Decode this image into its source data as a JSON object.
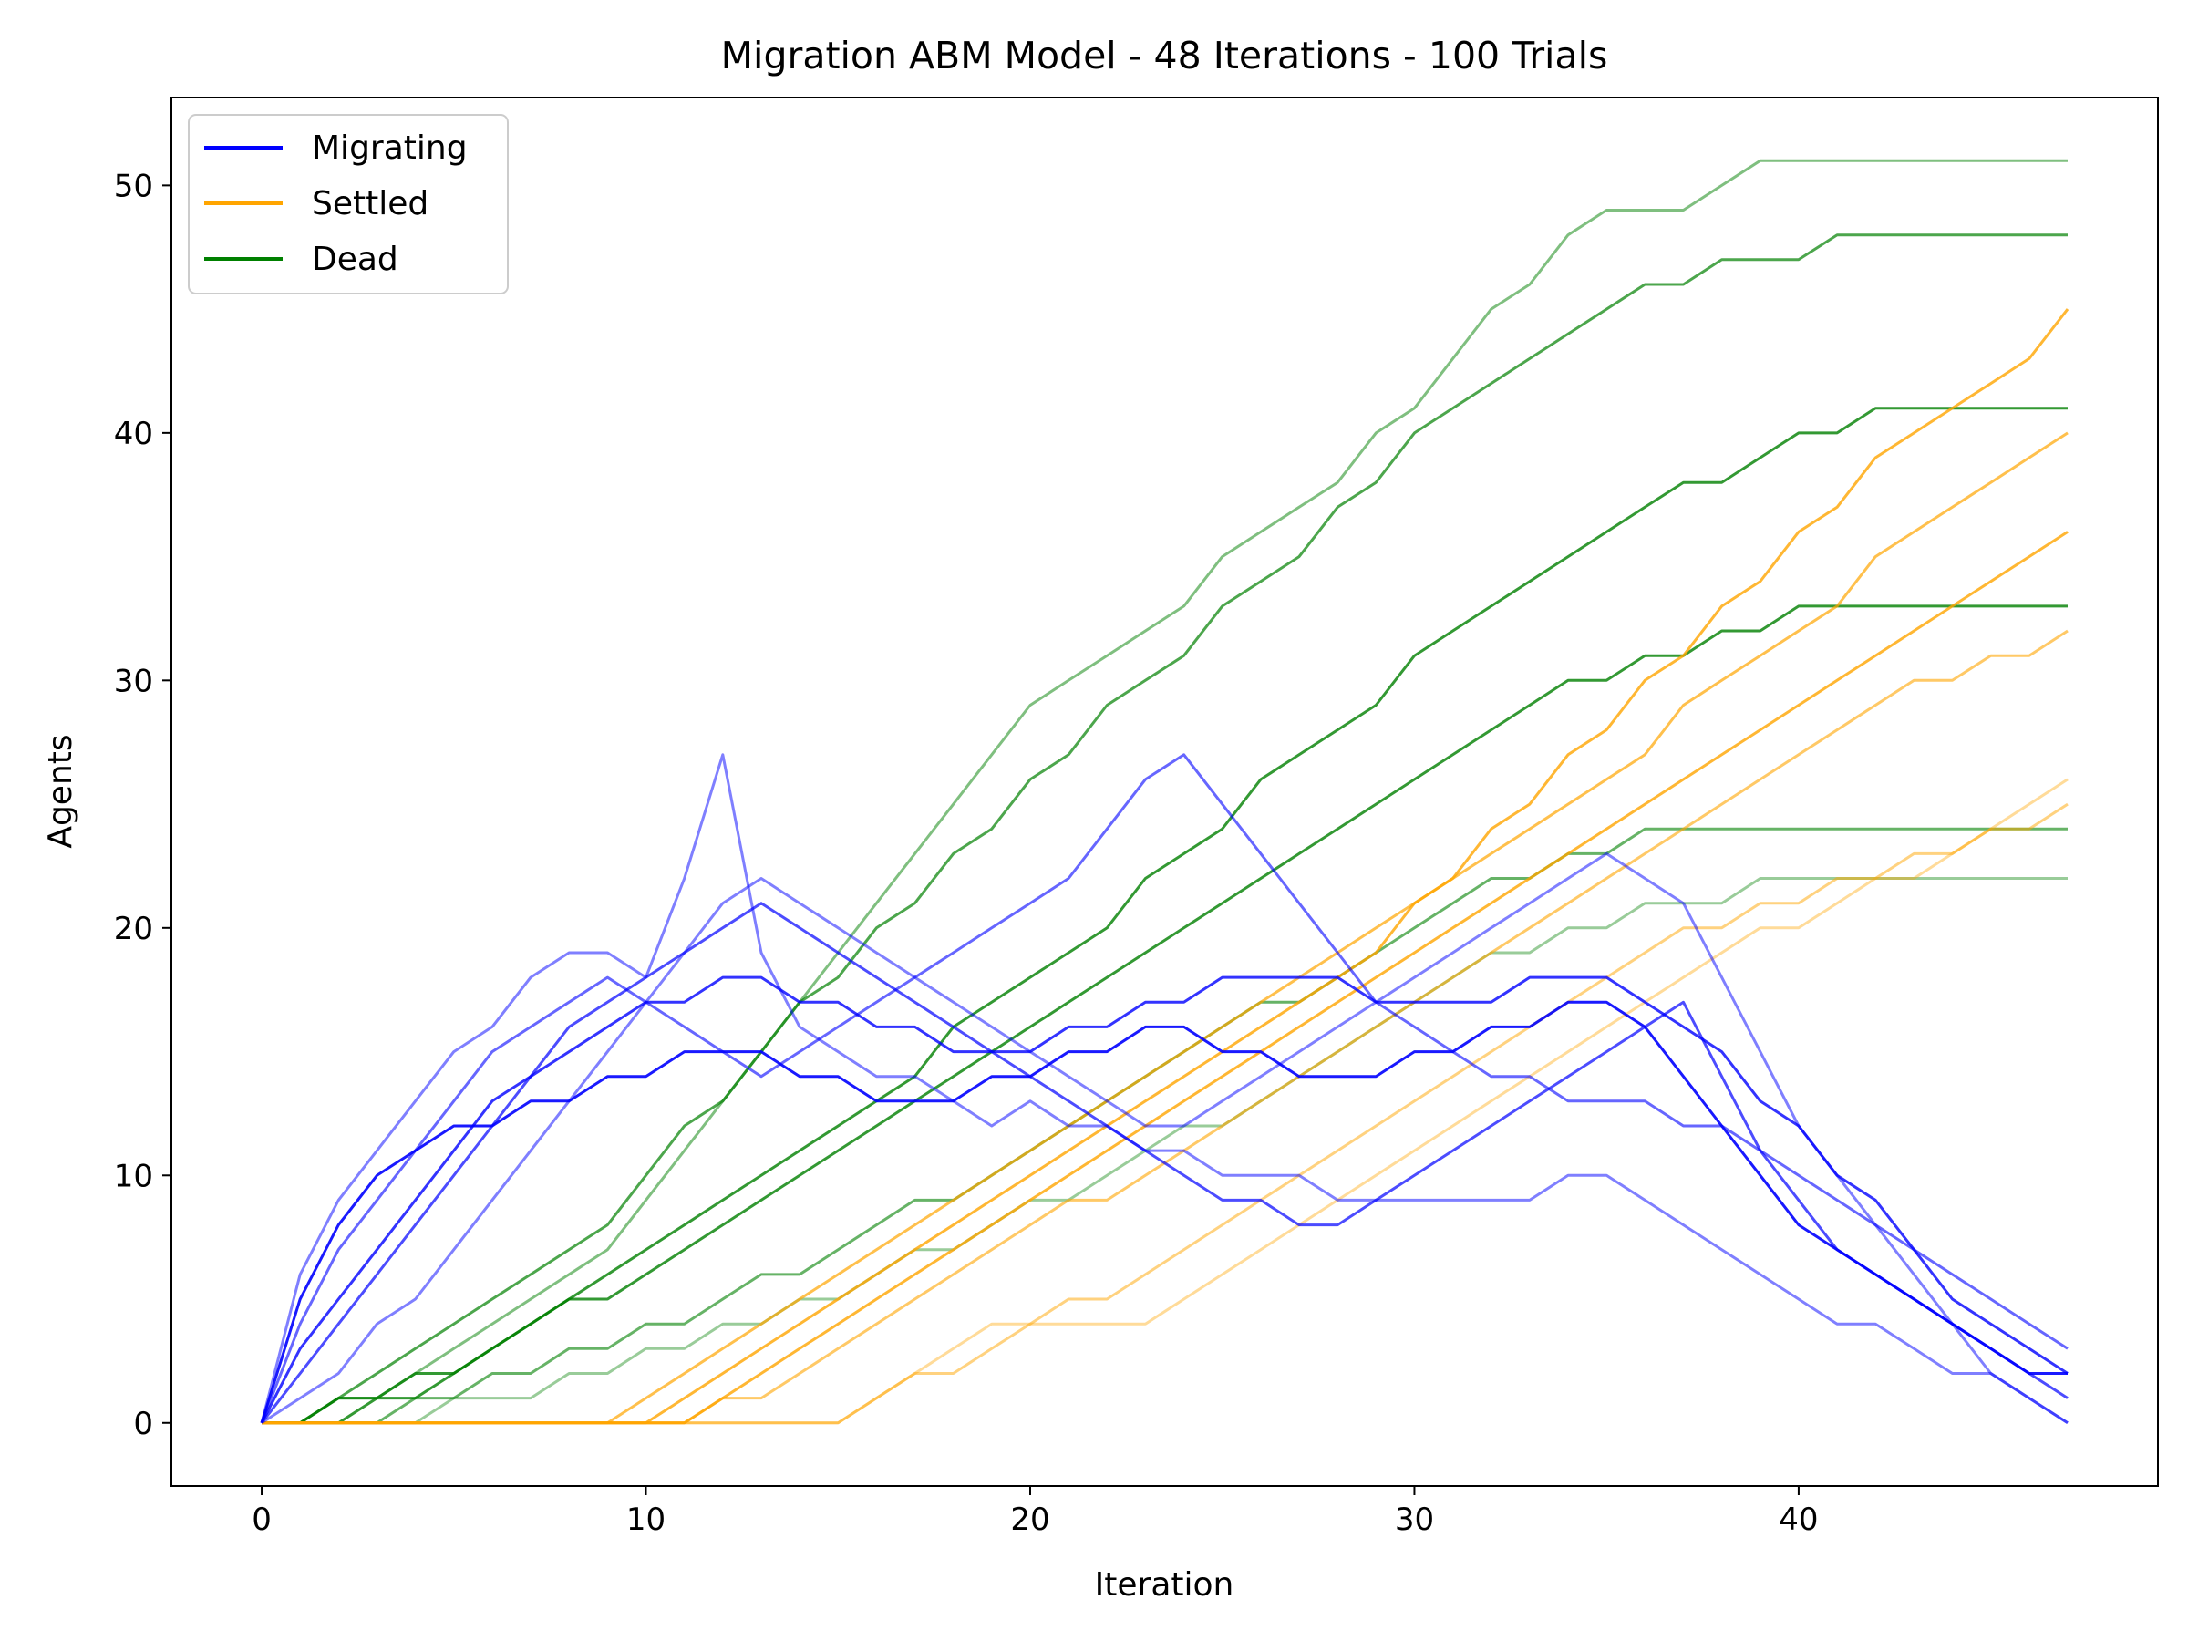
{
  "chart_data": {
    "type": "line",
    "title": "Migration ABM Model - 48 Iterations - 100 Trials",
    "xlabel": "Iteration",
    "ylabel": "Agents",
    "xlim": [
      -2.35,
      49.35
    ],
    "ylim": [
      -2.55,
      53.55
    ],
    "xticks": [
      0,
      10,
      20,
      30,
      40
    ],
    "yticks": [
      0,
      10,
      20,
      30,
      40,
      50
    ],
    "grid": false,
    "legend": "top-left",
    "legend_entries": [
      {
        "name": "Migrating",
        "color": "#0000ff"
      },
      {
        "name": "Settled",
        "color": "#ffa500"
      },
      {
        "name": "Dead",
        "color": "#008000"
      }
    ],
    "x": [
      0,
      1,
      2,
      3,
      4,
      5,
      6,
      7,
      8,
      9,
      10,
      11,
      12,
      13,
      14,
      15,
      16,
      17,
      18,
      19,
      20,
      21,
      22,
      23,
      24,
      25,
      26,
      27,
      28,
      29,
      30,
      31,
      32,
      33,
      34,
      35,
      36,
      37,
      38,
      39,
      40,
      41,
      42,
      43,
      44,
      45,
      46,
      47
    ],
    "series": [
      {
        "name": "Dead",
        "color": "#008000",
        "opacity": 0.5,
        "values": [
          0,
          0,
          1,
          1,
          2,
          3,
          4,
          5,
          6,
          7,
          9,
          11,
          13,
          15,
          17,
          19,
          21,
          23,
          25,
          27,
          29,
          30,
          31,
          32,
          33,
          35,
          36,
          37,
          38,
          40,
          41,
          43,
          45,
          46,
          48,
          49,
          49,
          49,
          50,
          51,
          51,
          51,
          51,
          51,
          51,
          51,
          51,
          51
        ]
      },
      {
        "name": "Dead",
        "color": "#008000",
        "opacity": 0.7,
        "values": [
          0,
          0,
          1,
          2,
          3,
          4,
          5,
          6,
          7,
          8,
          10,
          12,
          13,
          15,
          17,
          18,
          20,
          21,
          23,
          24,
          26,
          27,
          29,
          30,
          31,
          33,
          34,
          35,
          37,
          38,
          40,
          41,
          42,
          43,
          44,
          45,
          46,
          46,
          47,
          47,
          47,
          48,
          48,
          48,
          48,
          48,
          48,
          48
        ]
      },
      {
        "name": "Dead",
        "color": "#008000",
        "opacity": 0.8,
        "values": [
          0,
          0,
          0,
          1,
          1,
          2,
          3,
          4,
          5,
          5,
          6,
          7,
          8,
          9,
          10,
          11,
          12,
          13,
          14,
          15,
          16,
          17,
          18,
          19,
          20,
          21,
          22,
          23,
          24,
          25,
          26,
          27,
          28,
          29,
          30,
          30,
          31,
          31,
          32,
          32,
          33,
          33,
          33,
          33,
          33,
          33,
          33,
          33
        ]
      },
      {
        "name": "Dead",
        "color": "#008000",
        "opacity": 0.6,
        "values": [
          0,
          0,
          0,
          0,
          1,
          1,
          2,
          2,
          3,
          3,
          4,
          4,
          5,
          6,
          6,
          7,
          8,
          9,
          9,
          10,
          11,
          12,
          13,
          14,
          15,
          16,
          17,
          17,
          18,
          19,
          20,
          21,
          22,
          22,
          23,
          23,
          24,
          24,
          24,
          24,
          24,
          24,
          24,
          24,
          24,
          24,
          24,
          24
        ]
      },
      {
        "name": "Dead",
        "color": "#008000",
        "opacity": 0.4,
        "values": [
          0,
          0,
          0,
          0,
          0,
          1,
          1,
          1,
          2,
          2,
          3,
          3,
          4,
          4,
          5,
          5,
          6,
          7,
          7,
          8,
          9,
          9,
          10,
          11,
          12,
          12,
          13,
          14,
          15,
          16,
          17,
          18,
          19,
          19,
          20,
          20,
          21,
          21,
          21,
          22,
          22,
          22,
          22,
          22,
          22,
          22,
          22,
          22
        ]
      },
      {
        "name": "Dead",
        "color": "#008000",
        "opacity": 0.8,
        "values": [
          0,
          0,
          1,
          1,
          2,
          2,
          3,
          4,
          5,
          6,
          7,
          8,
          9,
          10,
          11,
          12,
          13,
          14,
          16,
          17,
          18,
          19,
          20,
          22,
          23,
          24,
          26,
          27,
          28,
          29,
          31,
          32,
          33,
          34,
          35,
          36,
          37,
          38,
          38,
          39,
          40,
          40,
          41,
          41,
          41,
          41,
          41,
          41
        ]
      },
      {
        "name": "Settled",
        "color": "#ffa500",
        "opacity": 0.8,
        "values": [
          0,
          0,
          0,
          0,
          0,
          0,
          0,
          0,
          0,
          0,
          0,
          1,
          2,
          3,
          4,
          5,
          6,
          7,
          8,
          9,
          10,
          11,
          12,
          13,
          14,
          15,
          16,
          17,
          18,
          19,
          21,
          22,
          24,
          25,
          27,
          28,
          30,
          31,
          33,
          34,
          36,
          37,
          39,
          40,
          41,
          42,
          43,
          45
        ]
      },
      {
        "name": "Settled",
        "color": "#ffa500",
        "opacity": 0.6,
        "values": [
          0,
          0,
          0,
          0,
          0,
          0,
          0,
          0,
          0,
          0,
          0,
          0,
          1,
          1,
          2,
          3,
          4,
          5,
          6,
          7,
          8,
          9,
          9,
          10,
          11,
          12,
          13,
          14,
          15,
          16,
          17,
          18,
          19,
          20,
          21,
          22,
          23,
          24,
          25,
          26,
          27,
          28,
          29,
          30,
          30,
          31,
          31,
          32
        ]
      },
      {
        "name": "Settled",
        "color": "#ffa500",
        "opacity": 0.5,
        "values": [
          0,
          0,
          0,
          0,
          0,
          0,
          0,
          0,
          0,
          0,
          0,
          0,
          0,
          0,
          0,
          0,
          1,
          2,
          2,
          3,
          4,
          5,
          5,
          6,
          7,
          8,
          9,
          10,
          11,
          12,
          13,
          14,
          15,
          16,
          17,
          18,
          19,
          20,
          20,
          21,
          21,
          22,
          22,
          23,
          23,
          24,
          24,
          25
        ]
      },
      {
        "name": "Settled",
        "color": "#ffa500",
        "opacity": 0.4,
        "values": [
          0,
          0,
          0,
          0,
          0,
          0,
          0,
          0,
          0,
          0,
          0,
          0,
          0,
          0,
          0,
          0,
          1,
          2,
          3,
          4,
          4,
          4,
          4,
          4,
          5,
          6,
          7,
          8,
          9,
          10,
          11,
          12,
          13,
          14,
          15,
          16,
          17,
          18,
          19,
          20,
          20,
          21,
          22,
          22,
          23,
          24,
          25,
          26
        ]
      },
      {
        "name": "Settled",
        "color": "#ffa500",
        "opacity": 0.7,
        "values": [
          0,
          0,
          0,
          0,
          0,
          0,
          0,
          0,
          0,
          0,
          1,
          2,
          3,
          4,
          5,
          6,
          7,
          8,
          9,
          10,
          11,
          12,
          13,
          14,
          15,
          16,
          17,
          18,
          19,
          20,
          21,
          22,
          23,
          24,
          25,
          26,
          27,
          29,
          30,
          31,
          32,
          33,
          35,
          36,
          37,
          38,
          39,
          40
        ]
      },
      {
        "name": "Settled",
        "color": "#ffa500",
        "opacity": 0.8,
        "values": [
          0,
          0,
          0,
          0,
          0,
          0,
          0,
          0,
          0,
          0,
          0,
          0,
          1,
          2,
          3,
          4,
          5,
          6,
          7,
          8,
          9,
          10,
          11,
          12,
          13,
          14,
          15,
          16,
          17,
          18,
          19,
          20,
          21,
          22,
          23,
          24,
          25,
          26,
          27,
          28,
          29,
          30,
          31,
          32,
          33,
          34,
          35,
          36
        ]
      },
      {
        "name": "Migrating",
        "color": "#0000ff",
        "opacity": 0.5,
        "values": [
          0,
          6,
          9,
          11,
          13,
          15,
          16,
          18,
          19,
          19,
          18,
          22,
          27,
          19,
          16,
          15,
          14,
          14,
          13,
          12,
          13,
          12,
          12,
          11,
          11,
          10,
          10,
          10,
          9,
          9,
          9,
          9,
          9,
          9,
          10,
          10,
          9,
          8,
          7,
          6,
          5,
          4,
          4,
          3,
          2,
          2,
          1,
          0
        ]
      },
      {
        "name": "Migrating",
        "color": "#0000ff",
        "opacity": 0.8,
        "values": [
          0,
          3,
          5,
          7,
          9,
          11,
          13,
          14,
          15,
          16,
          17,
          17,
          18,
          18,
          17,
          17,
          16,
          16,
          15,
          15,
          15,
          16,
          16,
          17,
          17,
          18,
          18,
          18,
          18,
          17,
          17,
          17,
          17,
          18,
          18,
          18,
          17,
          16,
          15,
          13,
          12,
          10,
          9,
          7,
          5,
          4,
          3,
          2
        ]
      },
      {
        "name": "Migrating",
        "color": "#0000ff",
        "opacity": 0.7,
        "values": [
          0,
          2,
          4,
          6,
          8,
          10,
          12,
          14,
          16,
          17,
          18,
          19,
          20,
          21,
          20,
          19,
          18,
          17,
          16,
          15,
          14,
          13,
          12,
          11,
          10,
          9,
          9,
          8,
          8,
          9,
          10,
          11,
          12,
          13,
          14,
          15,
          16,
          17,
          14,
          11,
          9,
          7,
          6,
          5,
          4,
          3,
          2,
          1
        ]
      },
      {
        "name": "Migrating",
        "color": "#0000ff",
        "opacity": 0.6,
        "values": [
          0,
          4,
          7,
          9,
          11,
          13,
          15,
          16,
          17,
          18,
          17,
          16,
          15,
          14,
          15,
          16,
          17,
          18,
          19,
          20,
          21,
          22,
          24,
          26,
          27,
          25,
          23,
          21,
          19,
          17,
          16,
          15,
          14,
          14,
          13,
          13,
          13,
          12,
          12,
          11,
          10,
          9,
          8,
          7,
          6,
          5,
          4,
          3
        ]
      },
      {
        "name": "Migrating",
        "color": "#0000ff",
        "opacity": 0.5,
        "values": [
          0,
          1,
          2,
          4,
          5,
          7,
          9,
          11,
          13,
          15,
          17,
          19,
          21,
          22,
          21,
          20,
          19,
          18,
          17,
          16,
          15,
          14,
          13,
          12,
          12,
          13,
          14,
          15,
          16,
          17,
          18,
          19,
          20,
          21,
          22,
          23,
          22,
          21,
          18,
          15,
          12,
          10,
          8,
          6,
          4,
          2,
          1,
          0
        ]
      },
      {
        "name": "Migrating",
        "color": "#0000ff",
        "opacity": 0.9,
        "values": [
          0,
          5,
          8,
          10,
          11,
          12,
          12,
          13,
          13,
          14,
          14,
          15,
          15,
          15,
          14,
          14,
          13,
          13,
          13,
          14,
          14,
          15,
          15,
          16,
          16,
          15,
          15,
          14,
          14,
          14,
          15,
          15,
          16,
          16,
          17,
          17,
          16,
          14,
          12,
          10,
          8,
          7,
          6,
          5,
          4,
          3,
          2,
          2
        ]
      }
    ]
  }
}
